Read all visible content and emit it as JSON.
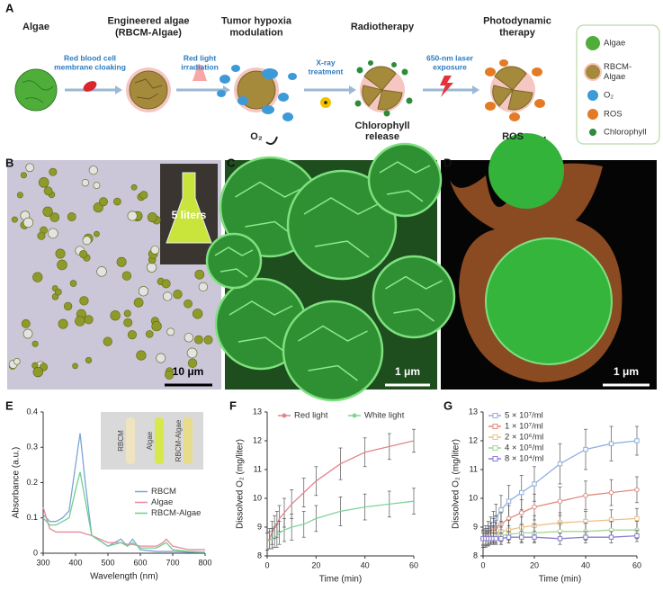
{
  "figure": {
    "panel_labels": [
      "A",
      "B",
      "C",
      "D",
      "E",
      "F",
      "G"
    ],
    "steps": [
      [
        "Algae"
      ],
      [
        "Engineered algae",
        "(RBCM-Algae)"
      ],
      [
        "Tumor hypoxia",
        "modulation"
      ],
      [
        "Radiotherapy"
      ],
      [
        "Photodynamic",
        "therapy"
      ]
    ],
    "arrows": [
      [
        "Red blood cell",
        "membrane cloaking"
      ],
      [
        "Red light",
        "irradiation"
      ],
      [
        "X-ray",
        "treatment"
      ],
      [
        "650-nm laser",
        "exposure"
      ]
    ],
    "notes": [
      [
        "O₂"
      ],
      [
        "Chlorophyll",
        "release"
      ],
      [
        "ROS"
      ]
    ],
    "legend": [
      [
        "Algae"
      ],
      [
        "RBCM-",
        "Algae"
      ],
      [
        "O₂"
      ],
      [
        "ROS"
      ],
      [
        "Chlorophyll"
      ]
    ],
    "micrographs": {
      "B": {
        "inset": "5 liters",
        "scale": "10 μm"
      },
      "C": {
        "scale": "1 μm"
      },
      "D": {
        "scale": "1 μm"
      }
    }
  },
  "chart_data": [
    {
      "type": "line",
      "x_label": "Wavelength (nm)",
      "y_label": "Absorbance (a.u.)",
      "inset_labels": [
        "RBCM",
        "Algae",
        "RBCM-Algae"
      ],
      "x": [
        300,
        320,
        340,
        360,
        380,
        400,
        414,
        430,
        450,
        500,
        540,
        560,
        576,
        600,
        650,
        670,
        680,
        700,
        750,
        800
      ],
      "series": [
        {
          "name": "RBCM",
          "color": "#7aa6d6",
          "values": [
            0.11,
            0.09,
            0.09,
            0.1,
            0.12,
            0.25,
            0.34,
            0.2,
            0.05,
            0.02,
            0.04,
            0.02,
            0.04,
            0.01,
            0.005,
            0.005,
            0.005,
            0.005,
            0.003,
            0.002
          ]
        },
        {
          "name": "Algae",
          "color": "#e58a9a",
          "values": [
            0.13,
            0.07,
            0.06,
            0.06,
            0.06,
            0.06,
            0.06,
            0.055,
            0.05,
            0.03,
            0.03,
            0.025,
            0.025,
            0.02,
            0.02,
            0.03,
            0.04,
            0.02,
            0.01,
            0.01
          ]
        },
        {
          "name": "RBCM-Algae",
          "color": "#6fcf8f",
          "values": [
            0.1,
            0.08,
            0.08,
            0.09,
            0.1,
            0.18,
            0.23,
            0.15,
            0.05,
            0.02,
            0.03,
            0.02,
            0.03,
            0.015,
            0.015,
            0.025,
            0.03,
            0.01,
            0.005,
            0.003
          ]
        }
      ],
      "xlim": [
        300,
        800
      ],
      "xticks": [
        300,
        400,
        500,
        600,
        700,
        800
      ],
      "ylim": [
        0,
        0.4
      ],
      "yticks": [
        0,
        0.1,
        0.2,
        0.3,
        0.4
      ],
      "legend": "center right",
      "markers": false
    },
    {
      "type": "line",
      "x_label": "Time (min)",
      "y_label": "Dissolved O₂ (mg/liter)",
      "x": [
        0,
        1,
        2,
        3,
        4,
        5,
        7,
        10,
        15,
        20,
        30,
        40,
        50,
        60
      ],
      "series": [
        {
          "name": "Red light",
          "color": "#e0868c",
          "values": [
            8.5,
            8.6,
            8.8,
            9.0,
            9.1,
            9.3,
            9.5,
            9.8,
            10.2,
            10.6,
            11.2,
            11.6,
            11.8,
            12.0
          ],
          "errors": [
            0.3,
            0.35,
            0.4,
            0.4,
            0.45,
            0.45,
            0.5,
            0.5,
            0.5,
            0.5,
            0.55,
            0.5,
            0.45,
            0.4
          ]
        },
        {
          "name": "White light",
          "color": "#7fd49a",
          "values": [
            8.5,
            8.55,
            8.6,
            8.65,
            8.7,
            8.8,
            8.9,
            9.0,
            9.1,
            9.3,
            9.55,
            9.7,
            9.8,
            9.9
          ],
          "errors": [
            0.3,
            0.3,
            0.35,
            0.35,
            0.4,
            0.4,
            0.4,
            0.45,
            0.45,
            0.45,
            0.5,
            0.45,
            0.45,
            0.45
          ]
        }
      ],
      "xlim": [
        0,
        60
      ],
      "xticks": [
        0,
        20,
        40,
        60
      ],
      "ylim": [
        8,
        13
      ],
      "yticks": [
        8,
        9,
        10,
        11,
        12,
        13
      ],
      "legend": "upper center",
      "markers": false
    },
    {
      "type": "line",
      "x_label": "Time (min)",
      "y_label": "Dissolved O₂ (mg/liter)",
      "x": [
        0,
        1,
        2,
        3,
        4,
        5,
        7,
        10,
        15,
        20,
        30,
        40,
        50,
        60
      ],
      "series": [
        {
          "name": "5 × 10⁷/ml",
          "color": "#8fb0e0",
          "values": [
            8.6,
            8.7,
            8.8,
            8.95,
            9.1,
            9.3,
            9.6,
            9.9,
            10.2,
            10.5,
            11.2,
            11.7,
            11.9,
            12.0
          ],
          "errors": [
            0.3,
            0.35,
            0.4,
            0.4,
            0.45,
            0.5,
            0.5,
            0.55,
            0.6,
            0.6,
            0.7,
            0.7,
            0.6,
            0.5
          ]
        },
        {
          "name": "1 × 10⁷/ml",
          "color": "#e08a80",
          "values": [
            8.6,
            8.65,
            8.7,
            8.8,
            8.9,
            9.0,
            9.1,
            9.3,
            9.5,
            9.7,
            9.9,
            10.1,
            10.2,
            10.3
          ],
          "errors": [
            0.3,
            0.3,
            0.35,
            0.35,
            0.4,
            0.4,
            0.4,
            0.45,
            0.45,
            0.45,
            0.5,
            0.5,
            0.45,
            0.45
          ]
        },
        {
          "name": "2 × 10⁶/ml",
          "color": "#e9c08a",
          "values": [
            8.6,
            8.6,
            8.65,
            8.7,
            8.75,
            8.8,
            8.85,
            8.9,
            9.0,
            9.05,
            9.15,
            9.2,
            9.25,
            9.3
          ],
          "errors": [
            0.3,
            0.3,
            0.3,
            0.3,
            0.3,
            0.35,
            0.35,
            0.35,
            0.35,
            0.35,
            0.35,
            0.35,
            0.35,
            0.35
          ]
        },
        {
          "name": "4 × 10⁵/ml",
          "color": "#a3d49a",
          "values": [
            8.6,
            8.6,
            8.6,
            8.65,
            8.65,
            8.7,
            8.7,
            8.75,
            8.8,
            8.8,
            8.85,
            8.85,
            8.9,
            8.9
          ],
          "errors": [
            0.25,
            0.25,
            0.25,
            0.25,
            0.25,
            0.3,
            0.3,
            0.3,
            0.3,
            0.3,
            0.3,
            0.3,
            0.3,
            0.3
          ]
        },
        {
          "name": "8 × 10⁴/ml",
          "color": "#8a7fcf",
          "values": [
            8.6,
            8.6,
            8.6,
            8.6,
            8.6,
            8.6,
            8.6,
            8.65,
            8.65,
            8.65,
            8.6,
            8.65,
            8.65,
            8.7
          ],
          "errors": [
            0.2,
            0.2,
            0.2,
            0.2,
            0.2,
            0.2,
            0.2,
            0.2,
            0.2,
            0.2,
            0.2,
            0.2,
            0.2,
            0.2
          ]
        }
      ],
      "xlim": [
        0,
        60
      ],
      "xticks": [
        0,
        20,
        40,
        60
      ],
      "ylim": [
        8,
        13
      ],
      "yticks": [
        8,
        9,
        10,
        11,
        12,
        13
      ],
      "legend": "upper left",
      "markers": true
    }
  ]
}
